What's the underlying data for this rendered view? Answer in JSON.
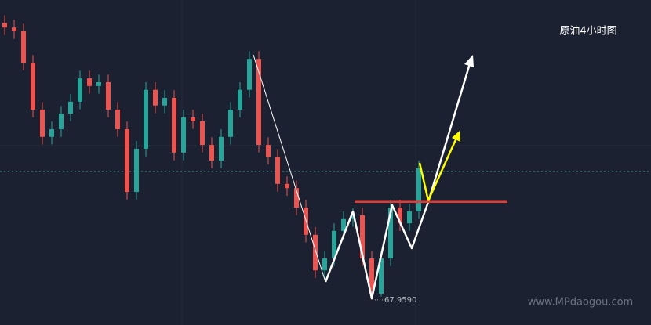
{
  "chart_data": {
    "type": "candlestick",
    "title": "原油4小时图",
    "up_color": "#26a69a",
    "down_color": "#ef5350",
    "ylim": [
      67.3,
      75.8
    ],
    "open": [
      75.2,
      75.08,
      74.98,
      74.16,
      72.93,
      72.22,
      72.42,
      72.83,
      73.14,
      73.75,
      73.55,
      73.65,
      72.93,
      72.42,
      70.78,
      71.91,
      73.45,
      73.04,
      73.24,
      71.81,
      72.73,
      72.63,
      72.01,
      71.6,
      72.22,
      72.93,
      73.45,
      74.26,
      72.01,
      71.7,
      70.99,
      70.88,
      70.37,
      69.66,
      68.73,
      69.04,
      69.76,
      70.07,
      70.17,
      69.04,
      68.12,
      69.04,
      70.37,
      69.96,
      70.27
    ],
    "high": [
      75.4,
      75.28,
      75.18,
      74.36,
      73.13,
      72.62,
      73.03,
      73.34,
      73.95,
      73.95,
      73.85,
      73.85,
      73.13,
      72.62,
      72.11,
      73.65,
      73.65,
      73.44,
      73.44,
      72.93,
      72.93,
      72.83,
      72.21,
      72.42,
      73.13,
      73.65,
      74.46,
      74.46,
      72.21,
      71.9,
      71.19,
      71.08,
      70.57,
      69.86,
      69.24,
      69.96,
      70.27,
      70.37,
      70.37,
      69.24,
      69.24,
      70.57,
      70.57,
      70.47,
      71.6
    ],
    "low": [
      74.88,
      74.78,
      73.96,
      72.73,
      72.02,
      72.02,
      72.22,
      72.63,
      72.94,
      73.35,
      73.35,
      72.73,
      72.22,
      70.58,
      70.58,
      71.71,
      72.84,
      72.84,
      71.61,
      71.61,
      72.43,
      71.81,
      71.4,
      71.4,
      72.02,
      72.73,
      73.25,
      71.81,
      71.5,
      70.79,
      70.68,
      70.17,
      69.46,
      68.53,
      68.53,
      68.84,
      69.56,
      69.87,
      68.84,
      67.959,
      68.05,
      68.84,
      69.76,
      69.76,
      70.07
    ],
    "close": [
      75.08,
      74.98,
      74.16,
      72.93,
      72.22,
      72.42,
      72.83,
      73.14,
      73.75,
      73.55,
      73.65,
      72.93,
      72.42,
      70.78,
      71.91,
      73.45,
      73.04,
      73.24,
      71.81,
      72.73,
      72.63,
      72.01,
      71.6,
      72.22,
      72.93,
      73.45,
      74.26,
      72.01,
      71.7,
      70.99,
      70.88,
      70.37,
      69.66,
      68.73,
      69.04,
      69.76,
      70.07,
      70.17,
      69.04,
      68.12,
      69.04,
      70.37,
      69.96,
      70.27,
      71.4
    ],
    "support_line": 70.52,
    "support_color": "#e53935",
    "last_price_line": 71.32,
    "price_label": {
      "value": 67.959,
      "label": "67.9590"
    },
    "watermark": "www.MPdaogou.com"
  }
}
